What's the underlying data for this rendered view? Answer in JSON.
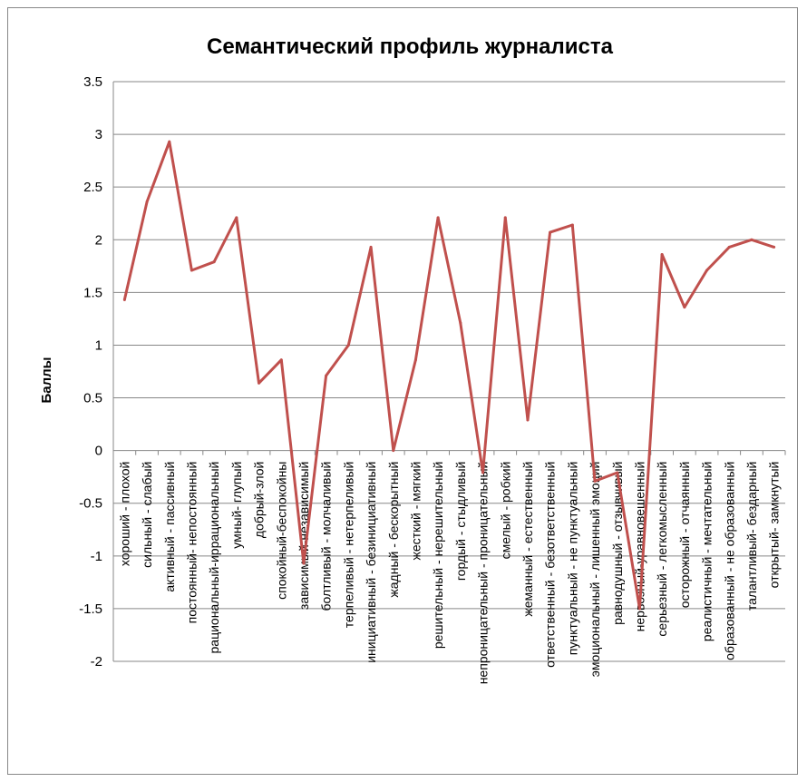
{
  "chart_data": {
    "type": "line",
    "title": "Семантический профиль журналиста",
    "ylabel": "Баллы",
    "xlabel": "",
    "ylim": [
      -2,
      3.5
    ],
    "yticks": [
      3.5,
      3,
      2.5,
      2,
      1.5,
      1,
      0.5,
      0,
      -0.5,
      -1,
      -1.5,
      -2
    ],
    "ytick_labels": [
      "3.5",
      "3",
      "2.5",
      "2",
      "1.5",
      "1",
      "0.5",
      "0",
      "-0.5",
      "-1",
      "-1.5",
      "-2"
    ],
    "grid": true,
    "line_color": "#c0504d",
    "categories": [
      "хороший - плохой",
      "сильный - слабый",
      "активный - пассивный",
      "постоянный- непостоянный",
      "рациональный-иррациональный",
      "умный- глупый",
      "добрый-злой",
      "спокойный-беспокойны",
      "зависимый-независимый",
      "болтливый - молчаливый",
      "терпеливый - нетерпеливый",
      "инициативный - безинициативный",
      "жадный - бескорытный",
      "жесткий - мягкий",
      "решительный - нерешительный",
      "гордый - стыдливый",
      "непроницательный - проницательный",
      "смелый - робкий",
      "жеманный - естественный",
      "ответственный - безответственный",
      "пунктуальный - не пунктуальный",
      "эмоциональный - лишенный эмоций",
      "равнодушный - отзывчивый",
      "нервозный-уравновешенный",
      "серьезный - легкомысленный",
      "осторожный - отчаянный",
      "реалистичный - мечтательный",
      "образованный - не образованный",
      "талантливый- бездарный",
      "открытый- замкнутый"
    ],
    "values": [
      1.43,
      2.36,
      2.93,
      1.71,
      1.79,
      2.21,
      0.64,
      0.86,
      -1.07,
      0.71,
      1.0,
      1.93,
      0.0,
      0.86,
      2.21,
      1.21,
      -0.21,
      2.21,
      0.29,
      2.07,
      2.14,
      -0.29,
      -0.21,
      -1.5,
      1.86,
      1.36,
      1.71,
      1.93,
      2.0,
      1.93
    ]
  }
}
